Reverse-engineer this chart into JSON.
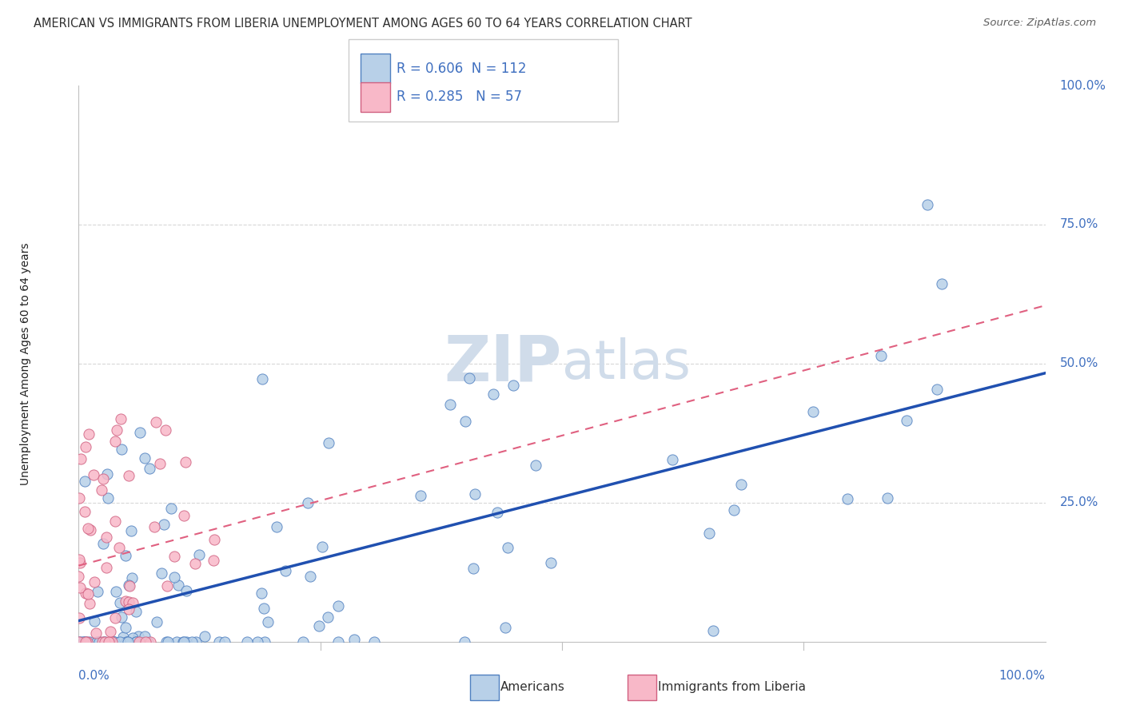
{
  "title": "AMERICAN VS IMMIGRANTS FROM LIBERIA UNEMPLOYMENT AMONG AGES 60 TO 64 YEARS CORRELATION CHART",
  "source": "Source: ZipAtlas.com",
  "ylabel": "Unemployment Among Ages 60 to 64 years",
  "legend_americans": "Americans",
  "legend_liberia": "Immigrants from Liberia",
  "r_americans": 0.606,
  "n_americans": 112,
  "r_liberia": 0.285,
  "n_liberia": 57,
  "color_americans_fill": "#b8d0e8",
  "color_americans_edge": "#5080c0",
  "color_liberia_fill": "#f8b8c8",
  "color_liberia_edge": "#d06080",
  "color_line_americans": "#2050b0",
  "color_line_liberia": "#e06080",
  "watermark_color": "#d0dcea",
  "grid_color": "#d8d8d8"
}
